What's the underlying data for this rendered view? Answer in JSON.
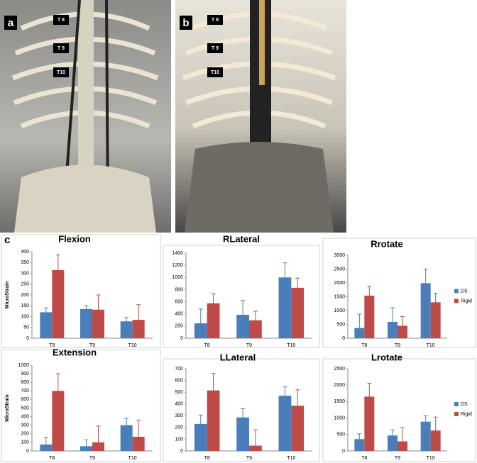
{
  "photos": [
    {
      "label": "a",
      "vertebrae": [
        "T 8",
        "T 9",
        "T10"
      ]
    },
    {
      "label": "b",
      "vertebrae": [
        "T 8",
        "T 9",
        "T10"
      ]
    }
  ],
  "panel_label": "c",
  "chart_data": [
    {
      "type": "bar",
      "title": "Flexion",
      "ylabel": "MicroStrain",
      "categories": [
        "T8",
        "T9",
        "T10"
      ],
      "series": [
        {
          "color": "#4a7ebb",
          "values": [
            120,
            135,
            78
          ],
          "errors": [
            20,
            15,
            17
          ]
        },
        {
          "color": "#be4b48",
          "values": [
            315,
            132,
            85
          ],
          "errors": [
            70,
            68,
            70
          ]
        }
      ],
      "ylim": [
        0,
        400
      ],
      "yticks": [
        0,
        50,
        100,
        150,
        200,
        250,
        300,
        350,
        400
      ]
    },
    {
      "type": "bar",
      "title": "RLateral",
      "categories": [
        "T8",
        "T9",
        "T10"
      ],
      "series": [
        {
          "color": "#4a7ebb",
          "values": [
            245,
            385,
            1000
          ],
          "errors": [
            235,
            235,
            240
          ]
        },
        {
          "color": "#be4b48",
          "values": [
            575,
            295,
            830
          ],
          "errors": [
            155,
            150,
            160
          ]
        }
      ],
      "ylim": [
        0,
        1400
      ],
      "yticks": [
        0,
        200,
        400,
        600,
        800,
        1000,
        1200,
        1400
      ]
    },
    {
      "type": "bar",
      "title": "Rrotate",
      "categories": [
        "T8",
        "T9",
        "T10"
      ],
      "series": [
        {
          "name": "DS",
          "color": "#4a7ebb",
          "values": [
            370,
            590,
            1990
          ],
          "errors": [
            500,
            510,
            510
          ]
        },
        {
          "name": "Rigid",
          "color": "#be4b48",
          "values": [
            1540,
            450,
            1300
          ],
          "errors": [
            340,
            330,
            320
          ]
        }
      ],
      "ylim": [
        0,
        3000
      ],
      "yticks": [
        0,
        500,
        1000,
        1500,
        2000,
        2500,
        3000
      ],
      "legend": "right"
    },
    {
      "type": "bar",
      "title": "Extension",
      "ylabel": "MicroStrain",
      "categories": [
        "T8",
        "T9",
        "T10"
      ],
      "series": [
        {
          "color": "#4a7ebb",
          "values": [
            75,
            55,
            300
          ],
          "errors": [
            85,
            75,
            80
          ]
        },
        {
          "color": "#be4b48",
          "values": [
            700,
            100,
            165
          ],
          "errors": [
            200,
            190,
            195
          ]
        }
      ],
      "ylim": [
        0,
        1000
      ],
      "yticks": [
        0,
        100,
        200,
        300,
        400,
        500,
        600,
        700,
        800,
        900,
        1000
      ]
    },
    {
      "type": "bar",
      "title": "LLateral",
      "categories": [
        "T8",
        "T9",
        "T10"
      ],
      "series": [
        {
          "color": "#4a7ebb",
          "values": [
            230,
            285,
            470
          ],
          "errors": [
            75,
            75,
            75
          ]
        },
        {
          "color": "#be4b48",
          "values": [
            515,
            45,
            385
          ],
          "errors": [
            145,
            135,
            135
          ]
        }
      ],
      "ylim": [
        0,
        700
      ],
      "yticks": [
        0,
        100,
        200,
        300,
        400,
        500,
        600,
        700
      ]
    },
    {
      "type": "bar",
      "title": "Lrotate",
      "categories": [
        "T8",
        "T9",
        "T10"
      ],
      "series": [
        {
          "name": "DS",
          "color": "#4a7ebb",
          "values": [
            360,
            470,
            890
          ],
          "errors": [
            160,
            170,
            180
          ]
        },
        {
          "name": "Rigid",
          "color": "#be4b48",
          "values": [
            1650,
            290,
            620
          ],
          "errors": [
            410,
            420,
            410
          ]
        }
      ],
      "ylim": [
        0,
        2500
      ],
      "yticks": [
        0,
        500,
        1000,
        1500,
        2000,
        2500
      ],
      "legend": "right"
    }
  ]
}
